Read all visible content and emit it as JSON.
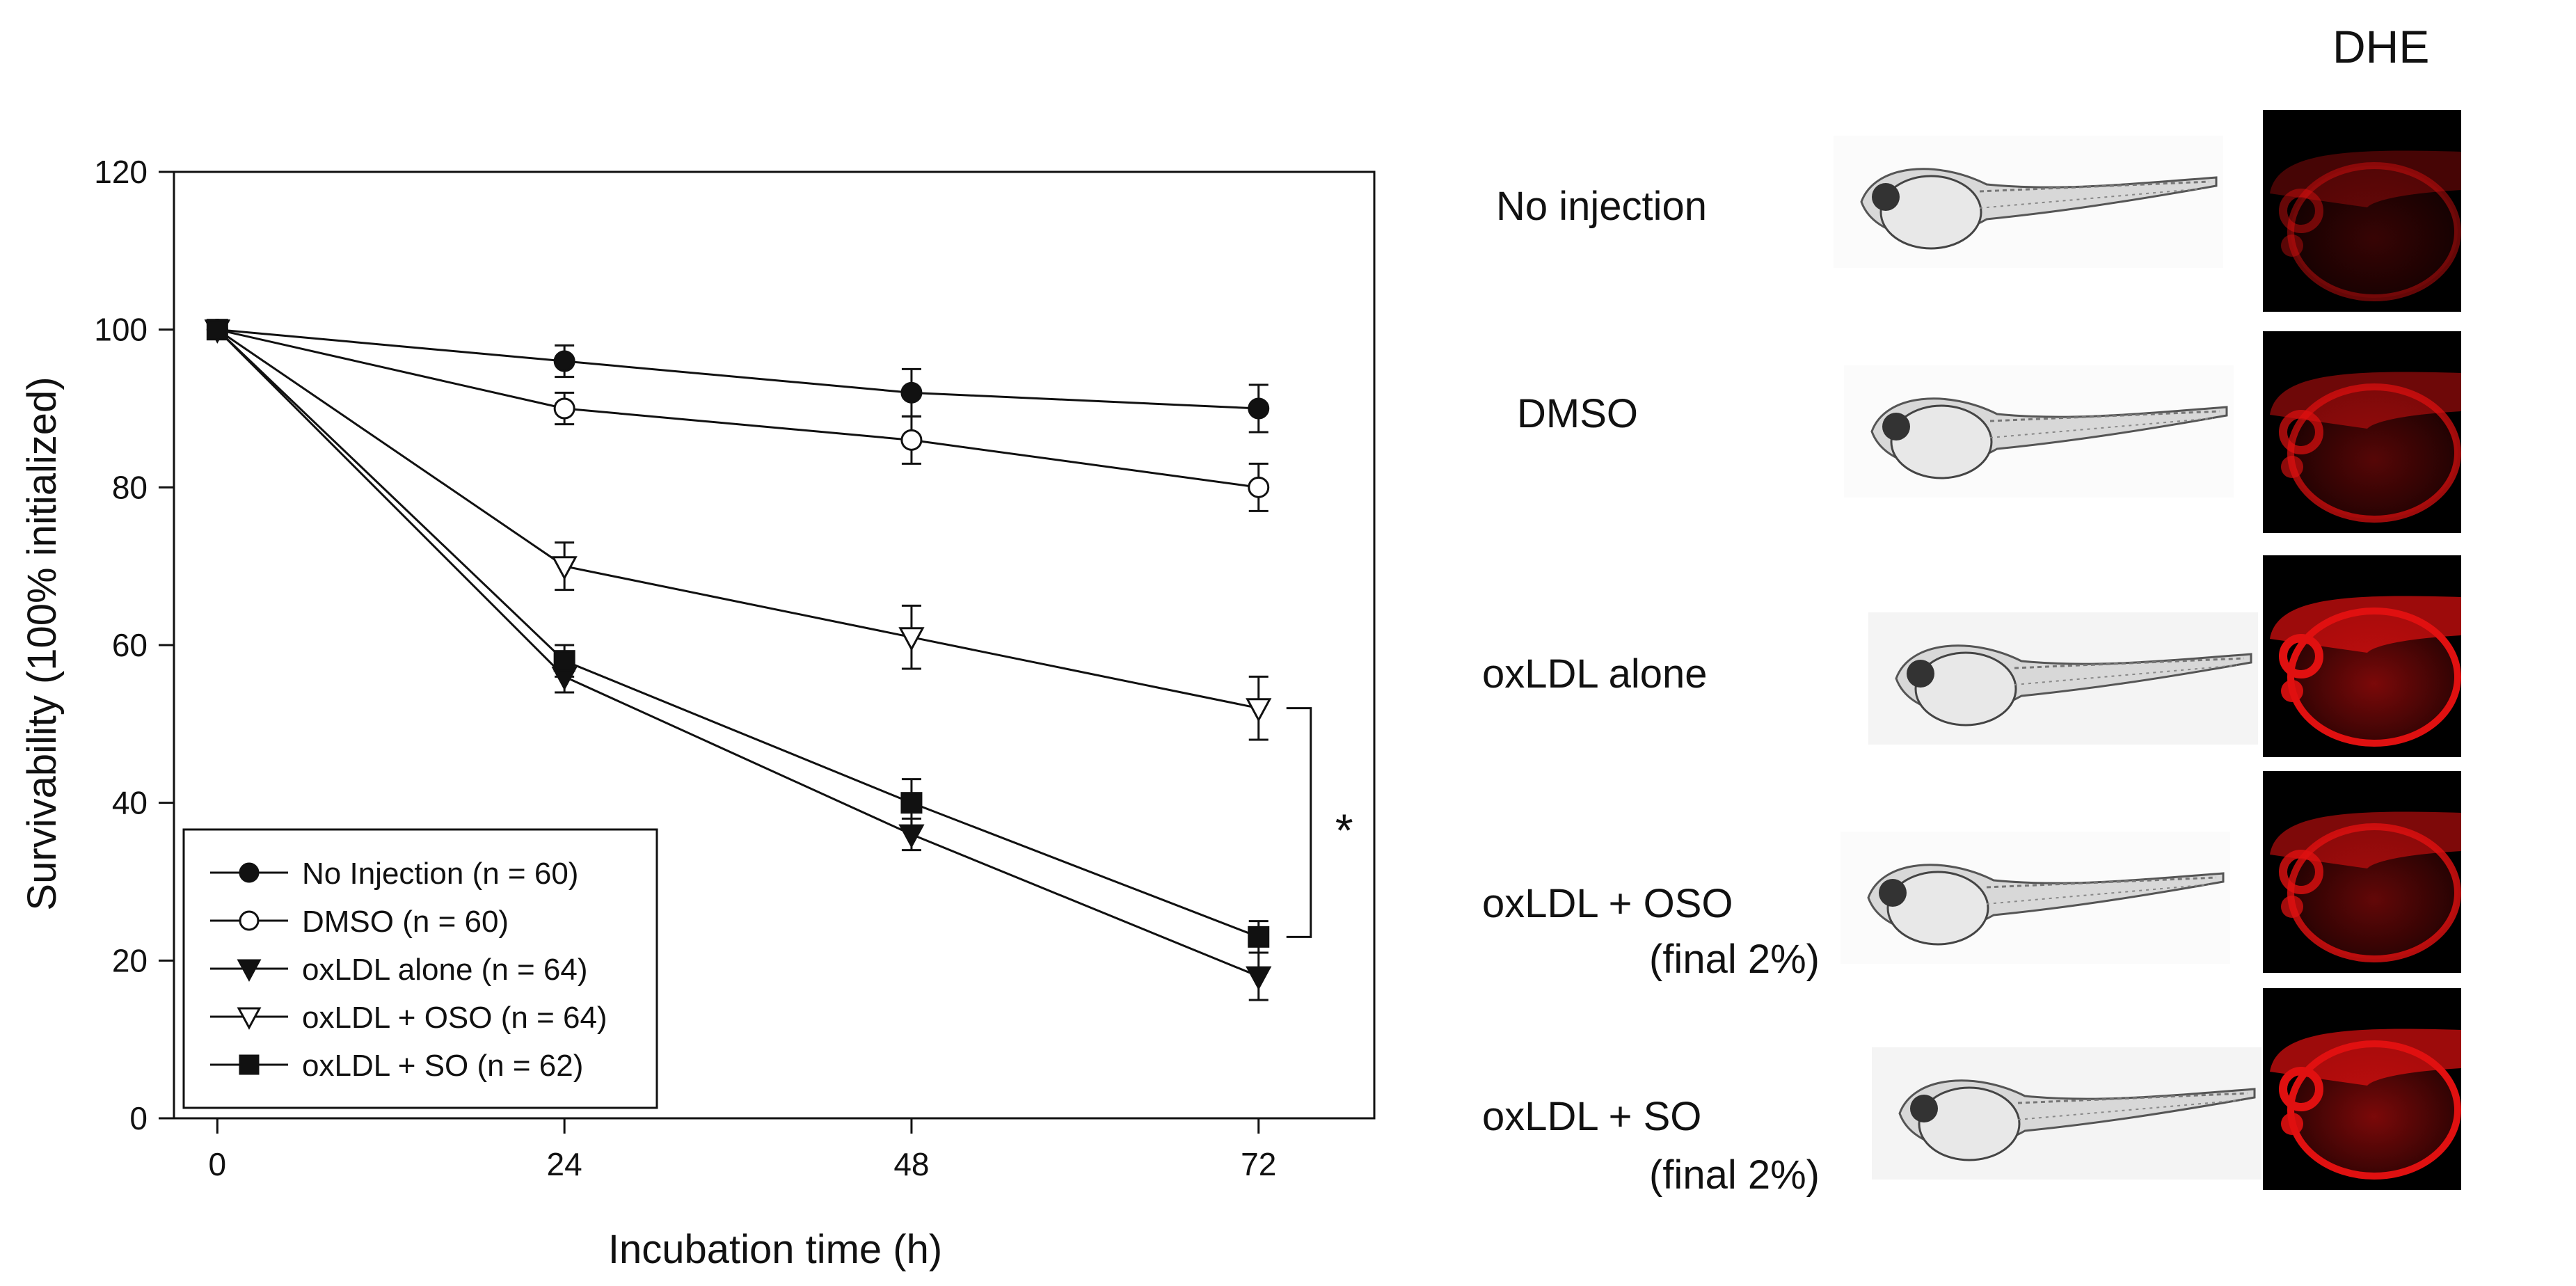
{
  "chart_data": {
    "type": "line",
    "xlabel": "Incubation time (h)",
    "ylabel": "Survivability (100% initialized)",
    "x": [
      0,
      24,
      48,
      72
    ],
    "xticks": [
      "0",
      "24",
      "48",
      "72"
    ],
    "xlim": [
      -3,
      80
    ],
    "ylim": [
      0,
      120
    ],
    "yticks": [
      "0",
      "20",
      "40",
      "60",
      "80",
      "100",
      "120"
    ],
    "grid": false,
    "legend_position": "bottom-left",
    "series": [
      {
        "name": "No Injection (n = 60)",
        "marker": "filled-circle",
        "values": [
          100,
          96,
          92,
          90
        ],
        "errors": [
          0,
          2,
          3,
          3
        ]
      },
      {
        "name": "DMSO (n = 60)",
        "marker": "open-circle",
        "values": [
          100,
          90,
          86,
          80
        ],
        "errors": [
          0,
          2,
          3,
          3
        ]
      },
      {
        "name": "oxLDL alone (n = 64)",
        "marker": "filled-triangle-down",
        "values": [
          100,
          56,
          36,
          18
        ],
        "errors": [
          0,
          2,
          2,
          3
        ]
      },
      {
        "name": "oxLDL + OSO (n = 64)",
        "marker": "open-triangle-down",
        "values": [
          100,
          70,
          61,
          52
        ],
        "errors": [
          0,
          3,
          4,
          4
        ]
      },
      {
        "name": "oxLDL + SO (n = 62)",
        "marker": "filled-square",
        "values": [
          100,
          58,
          40,
          23
        ],
        "errors": [
          0,
          2,
          3,
          2
        ]
      }
    ],
    "annotation": {
      "text": "*",
      "between": [
        "oxLDL + OSO (n = 64)",
        "oxLDL + SO (n = 62)"
      ],
      "x": 72
    }
  },
  "panel": {
    "column_title": "DHE",
    "rows": [
      {
        "label": "No injection",
        "sub": "",
        "dhe_intensity": 0.45
      },
      {
        "label": "DMSO",
        "sub": "",
        "dhe_intensity": 0.7
      },
      {
        "label": "oxLDL alone",
        "sub": "",
        "dhe_intensity": 1.0
      },
      {
        "label": "oxLDL + OSO",
        "sub": "(final 2%)",
        "dhe_intensity": 0.8
      },
      {
        "label": "oxLDL + SO",
        "sub": "(final 2%)",
        "dhe_intensity": 1.0
      }
    ]
  },
  "colors": {
    "line": "#111111",
    "fluorescence": "#e01010",
    "background": "#ffffff"
  }
}
